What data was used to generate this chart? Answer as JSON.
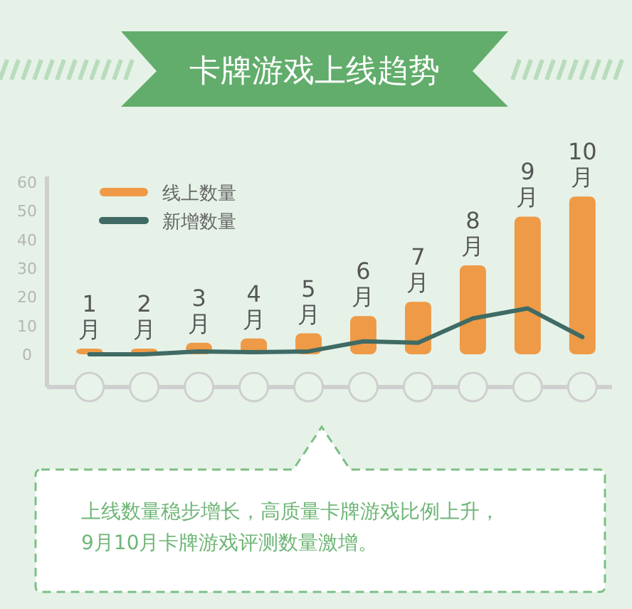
{
  "chart_data": {
    "type": "bar",
    "title": "卡牌游戏上线趋势",
    "categories": [
      "1月",
      "2月",
      "3月",
      "4月",
      "5月",
      "6月",
      "7月",
      "8月",
      "9月",
      "10月"
    ],
    "series": [
      {
        "name": "线上数量",
        "color": "#ee9a47",
        "values": [
          2,
          2,
          4,
          5.5,
          7.3,
          13.3,
          18.3,
          31,
          48,
          55
        ]
      },
      {
        "name": "新增数量",
        "type": "line",
        "color": "#3f6b64",
        "values": [
          0,
          0,
          1,
          0.7,
          1,
          4.5,
          4,
          12.5,
          16,
          6
        ]
      }
    ],
    "ylim": [
      -2,
      62
    ],
    "yticks": [
      0,
      10,
      20,
      30,
      40,
      50,
      60
    ],
    "grid": false,
    "legend": "top left",
    "marker": "none",
    "annotations": [
      "上线数量稳步增长，高质量卡牌游戏比例上升，\n9月10月卡牌游戏评测数量激增。"
    ]
  }
}
